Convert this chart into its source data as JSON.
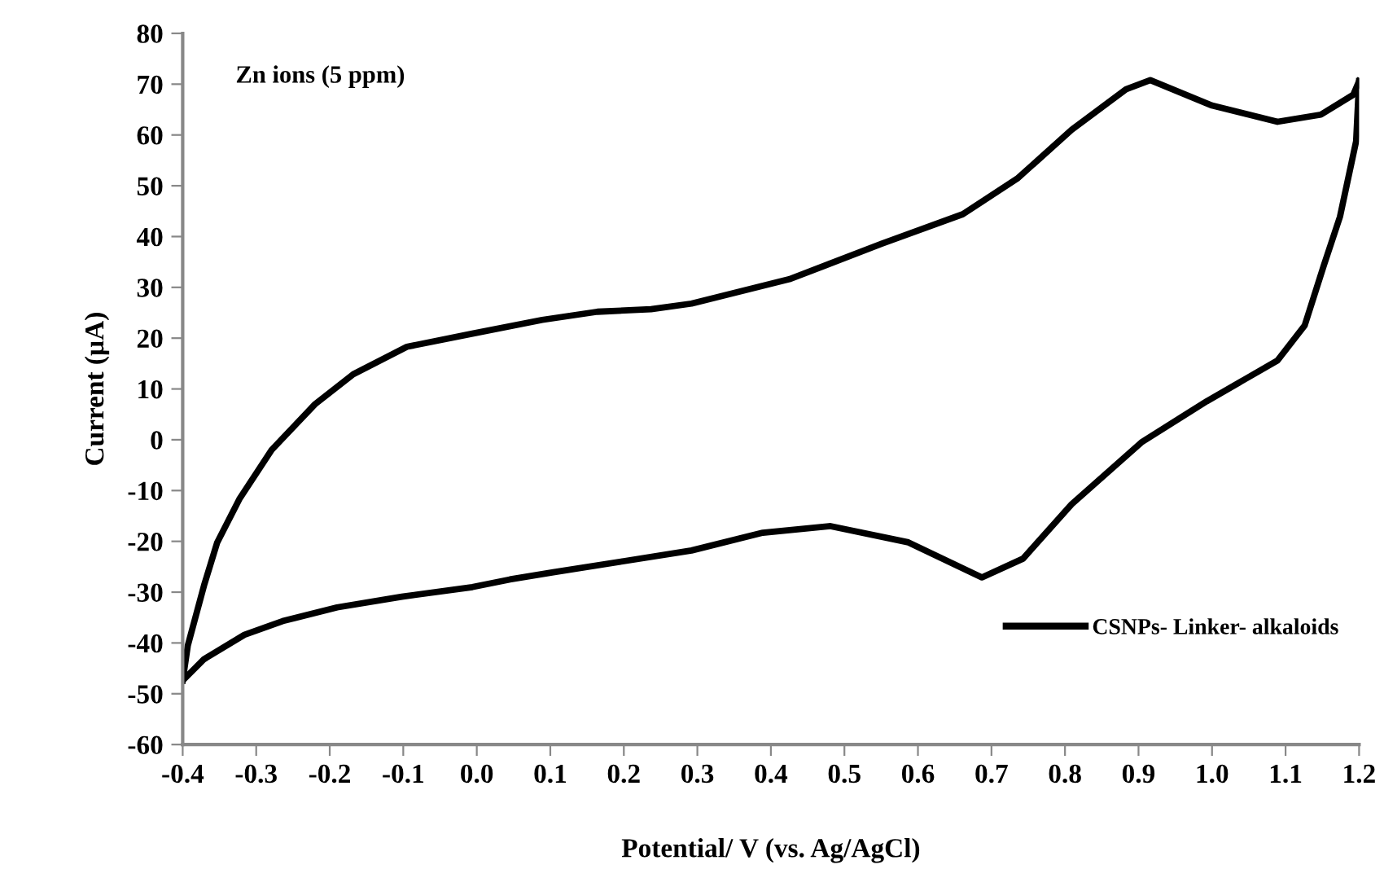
{
  "chart_data": {
    "type": "line",
    "xlabel": "Potential/ V (vs. Ag/AgCl)",
    "ylabel": "Current (µA)",
    "annotations": [
      "Zn ions (5 ppm)"
    ],
    "series": [
      {
        "name": "CSNPs- Linker- alkaloids",
        "color": "#000000",
        "x": [
          -0.4,
          -0.393,
          -0.371,
          -0.353,
          -0.323,
          -0.279,
          -0.22,
          -0.168,
          -0.095,
          -0.006,
          0.089,
          0.164,
          0.237,
          0.292,
          0.425,
          0.551,
          0.661,
          0.735,
          0.809,
          0.883,
          0.916,
          1.0,
          1.089,
          1.148,
          1.192,
          1.2
        ],
        "values": [
          -47.4,
          -40.5,
          -28.7,
          -20.2,
          -11.7,
          -2,
          7,
          12.9,
          18.3,
          20.9,
          23.6,
          25.2,
          25.7,
          26.8,
          31.6,
          38.6,
          44.4,
          51.4,
          61,
          69,
          70.8,
          65.8,
          62.6,
          64,
          67.9,
          70.6
        ]
      },
      {
        "color": "#000000",
        "x": [
          1.2,
          1.196,
          1.174,
          1.152,
          1.126,
          1.089,
          0.993,
          0.905,
          0.809,
          0.743,
          0.687,
          0.587,
          0.481,
          0.389,
          0.292,
          0.2,
          0.104,
          0.045,
          -0.006,
          -0.102,
          -0.19,
          -0.264,
          -0.316,
          -0.371,
          -0.4
        ],
        "values": [
          70.6,
          58.8,
          43.9,
          34.3,
          22.5,
          15.6,
          7.6,
          -0.4,
          -12.7,
          -23.4,
          -27.1,
          -20.2,
          -17,
          -18.3,
          -21.8,
          -23.9,
          -26.1,
          -27.5,
          -29,
          -30.9,
          -33,
          -35.7,
          -38.4,
          -43.2,
          -47.4
        ]
      }
    ],
    "xlim": [
      -0.4,
      1.2
    ],
    "xticks": [
      {
        "value": -0.4,
        "label": "-0.4"
      },
      {
        "value": -0.3,
        "label": "-0.3"
      },
      {
        "value": -0.2,
        "label": "-0.2"
      },
      {
        "value": -0.1,
        "label": "-0.1"
      },
      {
        "value": 0,
        "label": "0.0"
      },
      {
        "value": 0.1,
        "label": "0.1"
      },
      {
        "value": 0.2,
        "label": "0.2"
      },
      {
        "value": 0.3,
        "label": "0.3"
      },
      {
        "value": 0.4,
        "label": "0.4"
      },
      {
        "value": 0.5,
        "label": "0.5"
      },
      {
        "value": 0.6,
        "label": "0.6"
      },
      {
        "value": 0.7,
        "label": "0.7"
      },
      {
        "value": 0.8,
        "label": "0.8"
      },
      {
        "value": 0.9,
        "label": "0.9"
      },
      {
        "value": 1.0,
        "label": "1.0"
      },
      {
        "value": 1.1,
        "label": "1.1"
      },
      {
        "value": 1.2,
        "label": "1.2"
      }
    ],
    "ylim": [
      -60,
      80
    ],
    "yticks": [
      -60,
      -50,
      -40,
      -30,
      -20,
      -10,
      0,
      10,
      20,
      30,
      40,
      50,
      60,
      70,
      80
    ],
    "grid": false,
    "legend": "bottom right",
    "marker": "none",
    "line_style": "solid"
  }
}
